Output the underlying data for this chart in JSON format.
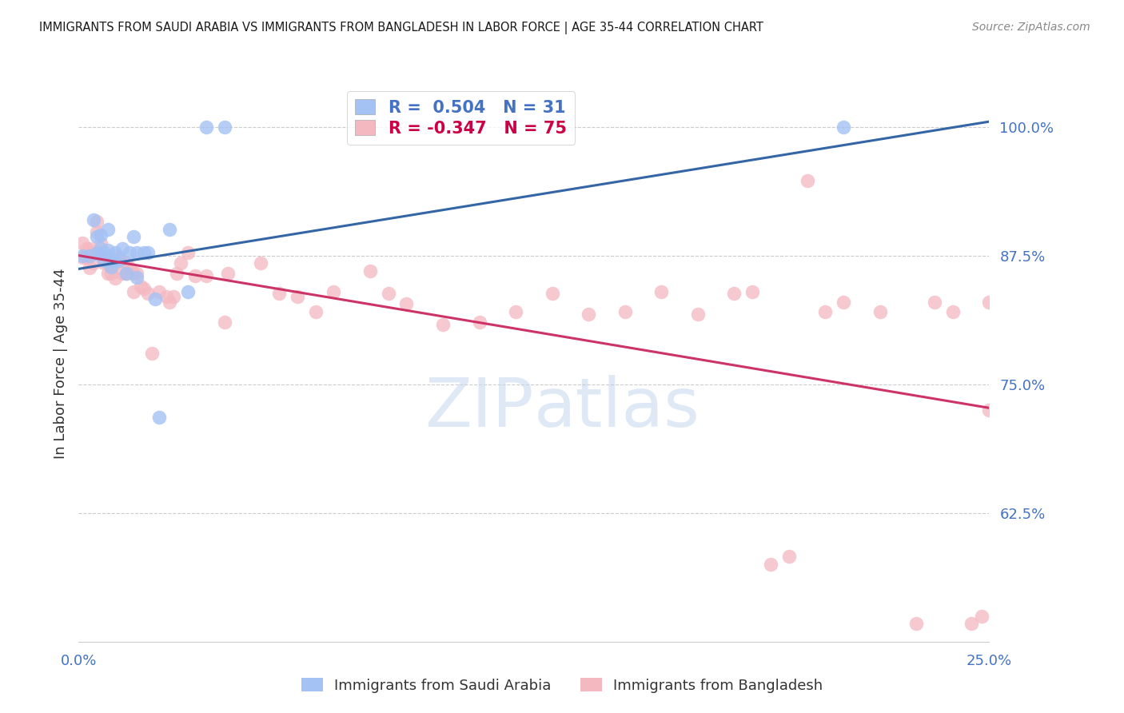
{
  "title": "IMMIGRANTS FROM SAUDI ARABIA VS IMMIGRANTS FROM BANGLADESH IN LABOR FORCE | AGE 35-44 CORRELATION CHART",
  "source": "Source: ZipAtlas.com",
  "ylabel": "In Labor Force | Age 35-44",
  "y_ticks": [
    0.625,
    0.75,
    0.875,
    1.0
  ],
  "y_tick_labels": [
    "62.5%",
    "75.0%",
    "87.5%",
    "100.0%"
  ],
  "xlim": [
    0.0,
    0.25
  ],
  "ylim": [
    0.5,
    1.04
  ],
  "saudi_R": "0.504",
  "saudi_N": "31",
  "bangladesh_R": "-0.347",
  "bangladesh_N": "75",
  "saudi_color": "#a4c2f4",
  "bangladesh_color": "#f4b8c1",
  "saudi_line_color": "#3465a4",
  "bangladesh_line_color": "#cc3366",
  "saudi_line_x0": 0.0,
  "saudi_line_y0": 0.862,
  "saudi_line_x1": 0.25,
  "saudi_line_y1": 1.005,
  "bangladesh_line_x0": 0.0,
  "bangladesh_line_y0": 0.875,
  "bangladesh_line_x1": 0.25,
  "bangladesh_line_y1": 0.727,
  "saudi_points_x": [
    0.001,
    0.003,
    0.004,
    0.005,
    0.005,
    0.006,
    0.006,
    0.007,
    0.007,
    0.008,
    0.008,
    0.009,
    0.009,
    0.01,
    0.01,
    0.011,
    0.012,
    0.013,
    0.014,
    0.015,
    0.016,
    0.016,
    0.018,
    0.019,
    0.021,
    0.022,
    0.025,
    0.03,
    0.035,
    0.04,
    0.21
  ],
  "saudi_points_y": [
    0.875,
    0.875,
    0.91,
    0.893,
    0.877,
    0.882,
    0.895,
    0.87,
    0.878,
    0.88,
    0.9,
    0.864,
    0.87,
    0.87,
    0.878,
    0.87,
    0.882,
    0.858,
    0.878,
    0.893,
    0.854,
    0.878,
    0.878,
    0.878,
    0.833,
    0.718,
    0.9,
    0.84,
    1.0,
    1.0,
    1.0
  ],
  "bangladesh_points_x": [
    0.001,
    0.001,
    0.002,
    0.002,
    0.003,
    0.003,
    0.003,
    0.004,
    0.004,
    0.005,
    0.005,
    0.006,
    0.006,
    0.007,
    0.007,
    0.008,
    0.008,
    0.009,
    0.009,
    0.01,
    0.01,
    0.011,
    0.012,
    0.013,
    0.013,
    0.014,
    0.015,
    0.015,
    0.016,
    0.017,
    0.018,
    0.019,
    0.02,
    0.022,
    0.024,
    0.025,
    0.026,
    0.027,
    0.028,
    0.03,
    0.032,
    0.035,
    0.04,
    0.041,
    0.05,
    0.055,
    0.06,
    0.065,
    0.07,
    0.08,
    0.085,
    0.09,
    0.1,
    0.11,
    0.12,
    0.13,
    0.14,
    0.15,
    0.16,
    0.17,
    0.18,
    0.185,
    0.19,
    0.195,
    0.2,
    0.205,
    0.21,
    0.22,
    0.23,
    0.235,
    0.24,
    0.245,
    0.248,
    0.25,
    0.25
  ],
  "bangladesh_points_y": [
    0.887,
    0.873,
    0.882,
    0.873,
    0.882,
    0.877,
    0.863,
    0.878,
    0.868,
    0.908,
    0.898,
    0.878,
    0.887,
    0.873,
    0.868,
    0.87,
    0.858,
    0.873,
    0.858,
    0.868,
    0.853,
    0.873,
    0.858,
    0.868,
    0.858,
    0.863,
    0.858,
    0.84,
    0.858,
    0.845,
    0.843,
    0.838,
    0.78,
    0.84,
    0.835,
    0.83,
    0.835,
    0.858,
    0.868,
    0.878,
    0.855,
    0.855,
    0.81,
    0.858,
    0.868,
    0.838,
    0.835,
    0.82,
    0.84,
    0.86,
    0.838,
    0.828,
    0.808,
    0.81,
    0.82,
    0.838,
    0.818,
    0.82,
    0.84,
    0.818,
    0.838,
    0.84,
    0.575,
    0.583,
    0.948,
    0.82,
    0.83,
    0.82,
    0.518,
    0.83,
    0.82,
    0.518,
    0.525,
    0.83,
    0.725
  ]
}
